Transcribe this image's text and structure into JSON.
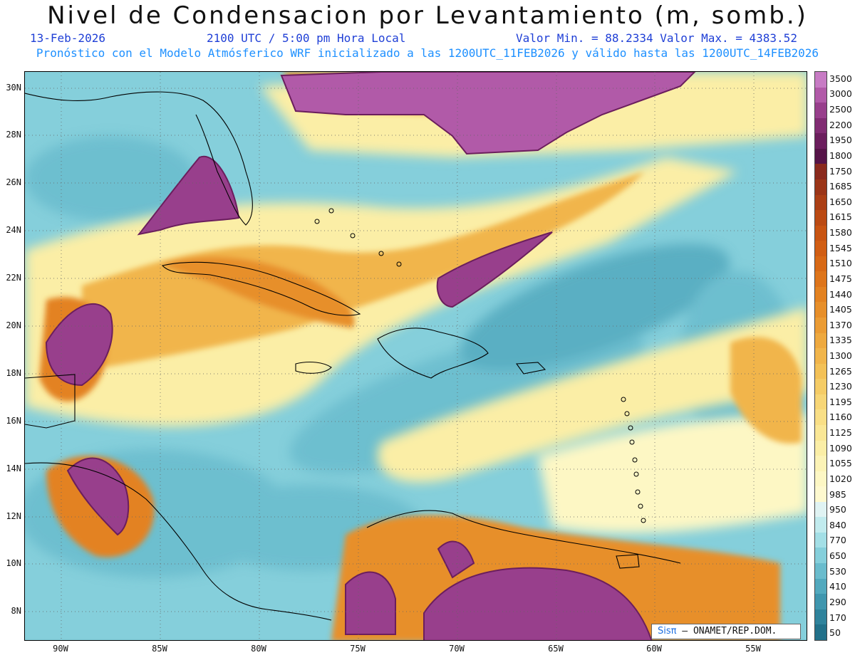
{
  "title": "Nivel de Condensacion por Levantamiento (m, somb.)",
  "date": "13-Feb-2026",
  "time": "2100 UTC / 5:00 pm Hora Local",
  "minmax": "Valor Min. = 88.2334  Valor Max. = 4383.52",
  "run_info": "Pronóstico con el Modelo Atmósferico WRF inicializado a las 1200UTC_11FEB2026 y válido hasta las  1200UTC_14FEB2026",
  "lat_labels": [
    "30N",
    "28N",
    "26N",
    "24N",
    "22N",
    "20N",
    "18N",
    "16N",
    "14N",
    "12N",
    "10N",
    "8N"
  ],
  "lon_labels": [
    "90W",
    "85W",
    "80W",
    "75W",
    "70W",
    "65W",
    "60W",
    "55W"
  ],
  "colorbar": {
    "labels": [
      "3500",
      "3000",
      "2500",
      "2200",
      "1950",
      "1800",
      "1750",
      "1685",
      "1650",
      "1615",
      "1580",
      "1545",
      "1510",
      "1475",
      "1440",
      "1405",
      "1370",
      "1335",
      "1300",
      "1265",
      "1230",
      "1195",
      "1160",
      "1125",
      "1090",
      "1055",
      "1020",
      "985",
      "950",
      "840",
      "770",
      "650",
      "530",
      "410",
      "290",
      "170",
      "50"
    ],
    "colors": [
      "#c77bc4",
      "#b15aa8",
      "#983f8c",
      "#812c73",
      "#6b1e5d",
      "#561448",
      "#8a2a1d",
      "#9b3518",
      "#ab3f15",
      "#bb4a13",
      "#c85412",
      "#d15e14",
      "#d86916",
      "#de751b",
      "#e38221",
      "#e78f2a",
      "#eb9c34",
      "#eea93f",
      "#f1b54b",
      "#f3c157",
      "#f5cc66",
      "#f7d676",
      "#f9df86",
      "#fae796",
      "#fbeea6",
      "#fcf3b6",
      "#fdf7c4",
      "#fef9cf",
      "#e0f3f3",
      "#c1ebee",
      "#a3dfe6",
      "#85cfdb",
      "#6abccd",
      "#52a9be",
      "#3f96ae",
      "#2f839c",
      "#22718a"
    ]
  },
  "credit": {
    "sis": "Sisπ",
    "org": "– ONAMET/REP.DOM."
  }
}
